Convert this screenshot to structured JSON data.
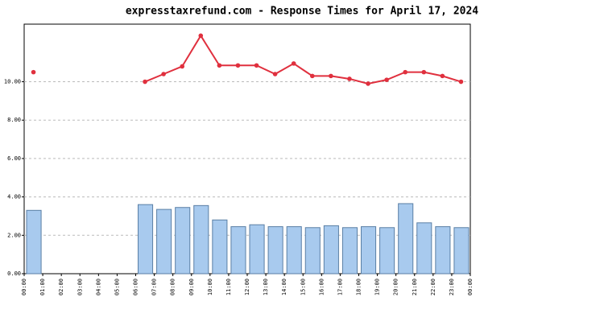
{
  "chart_data": {
    "type": "bar-line",
    "title": "expresstaxrefund.com - Response Times for April 17, 2024",
    "categories": [
      "00:00",
      "01:00",
      "02:00",
      "03:00",
      "04:00",
      "05:00",
      "06:00",
      "07:00",
      "08:00",
      "09:00",
      "10:00",
      "11:00",
      "12:00",
      "13:00",
      "14:00",
      "15:00",
      "16:00",
      "17:00",
      "18:00",
      "19:00",
      "20:00",
      "21:00",
      "22:00",
      "23:00",
      "00:00"
    ],
    "series": [
      {
        "type": "bar",
        "color": "#a8caee",
        "values": [
          3.3,
          null,
          null,
          null,
          null,
          null,
          3.6,
          3.35,
          3.45,
          3.55,
          2.8,
          2.45,
          2.55,
          2.45,
          2.45,
          2.4,
          2.5,
          2.4,
          2.45,
          2.4,
          3.65,
          2.65,
          2.45,
          2.4,
          null
        ]
      },
      {
        "type": "line",
        "color": "#e0303e",
        "values": [
          10.5,
          null,
          null,
          null,
          null,
          null,
          10.0,
          10.4,
          10.8,
          12.4,
          10.85,
          10.85,
          10.85,
          10.4,
          10.95,
          10.3,
          10.3,
          10.15,
          9.9,
          10.1,
          10.5,
          10.5,
          10.3,
          10.0,
          null
        ]
      }
    ],
    "ylim": [
      0,
      13
    ],
    "yticks": [
      {
        "value": 0,
        "label": "0.00"
      },
      {
        "value": 2,
        "label": "2.00"
      },
      {
        "value": 4,
        "label": "4.00"
      },
      {
        "value": 6,
        "label": "6.00"
      },
      {
        "value": 8,
        "label": "8.00"
      },
      {
        "value": 10,
        "label": "10.00"
      }
    ],
    "grid": true
  }
}
